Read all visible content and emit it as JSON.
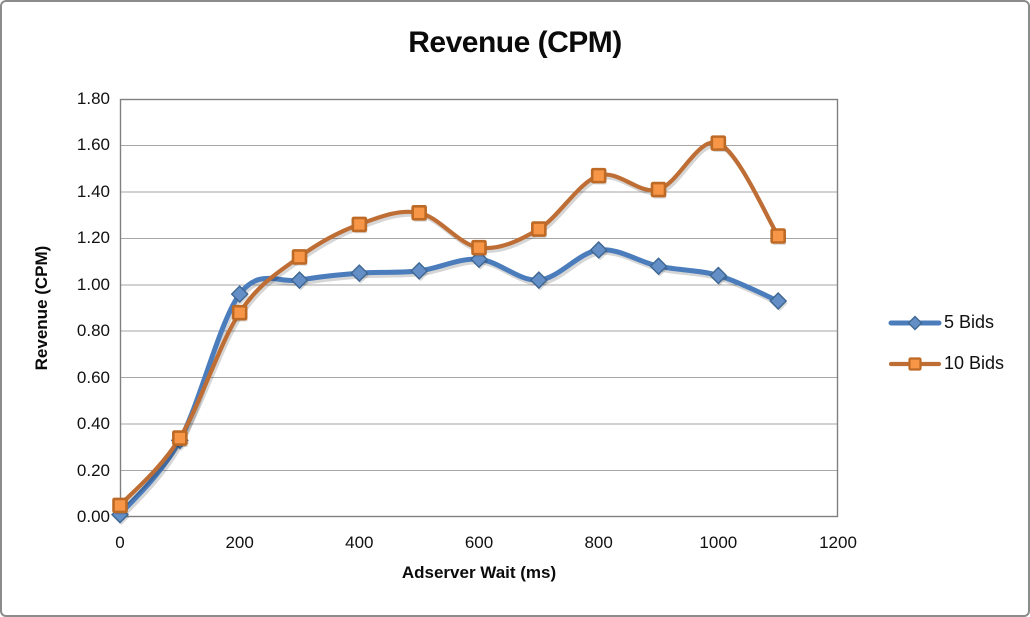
{
  "chart": {
    "title": "Revenue (CPM)",
    "x_axis": {
      "label": "Adserver Wait (ms)",
      "min": 0,
      "max": 1200,
      "tick_step": 200,
      "ticks": [
        "0",
        "200",
        "400",
        "600",
        "800",
        "1000",
        "1200"
      ]
    },
    "y_axis": {
      "label": "Revenue (CPM)",
      "min": 0.0,
      "max": 1.8,
      "tick_step": 0.2,
      "ticks": [
        "0.00",
        "0.20",
        "0.40",
        "0.60",
        "0.80",
        "1.00",
        "1.20",
        "1.40",
        "1.60",
        "1.80"
      ]
    },
    "colors": {
      "gridline": "#A6A6A6",
      "plot_border": "#808080",
      "outer_border": "#8C8C8C"
    }
  },
  "chart_data": {
    "type": "line",
    "title": "Revenue (CPM)",
    "xlabel": "Adserver Wait (ms)",
    "ylabel": "Revenue (CPM)",
    "xlim": [
      0,
      1200
    ],
    "ylim": [
      0.0,
      1.8
    ],
    "grid": "horizontal",
    "legend_position": "right",
    "x": [
      0,
      100,
      200,
      300,
      400,
      500,
      600,
      700,
      800,
      900,
      1000,
      1100
    ],
    "series": [
      {
        "name": "5 Bids",
        "marker": "diamond",
        "line_color": "#4B7DBD",
        "marker_fill": "#638EC6",
        "marker_stroke": "#3E6792",
        "values": [
          0.01,
          0.33,
          0.96,
          1.02,
          1.05,
          1.06,
          1.11,
          1.02,
          1.15,
          1.08,
          1.04,
          0.93
        ]
      },
      {
        "name": "10 Bids",
        "marker": "square",
        "line_color": "#BE6E35",
        "marker_fill": "#F79646",
        "marker_stroke": "#BD6A27",
        "values": [
          0.05,
          0.34,
          0.88,
          1.12,
          1.26,
          1.31,
          1.16,
          1.24,
          1.47,
          1.41,
          1.61,
          1.21
        ]
      }
    ]
  }
}
